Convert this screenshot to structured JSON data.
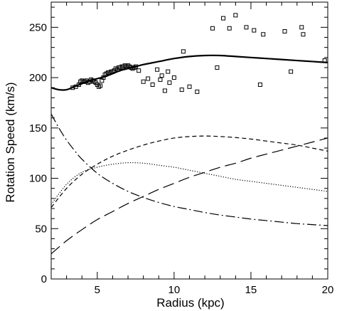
{
  "chart_data": {
    "type": "line",
    "title": "",
    "xlabel": "Radius (kpc)",
    "ylabel": "Rotation Speed (km/s)",
    "xlim": [
      2,
      20
    ],
    "ylim": [
      0,
      275
    ],
    "xticks": [
      5,
      10,
      15,
      20
    ],
    "yticks": [
      0,
      50,
      100,
      150,
      200,
      250
    ],
    "grid": false,
    "legend": "none",
    "series": [
      {
        "style": "solid",
        "width": 2.2,
        "x": [
          2.0,
          2.5,
          3.0,
          3.5,
          4.0,
          4.5,
          5.0,
          5.5,
          6.0,
          6.5,
          7.0,
          7.5,
          8.0,
          9.0,
          10.0,
          11.0,
          12.0,
          13.0,
          14.0,
          15.0,
          16.0,
          17.0,
          18.0,
          19.0,
          20.0
        ],
        "y": [
          190,
          188,
          188,
          191,
          194,
          197,
          199,
          201,
          204,
          207,
          209,
          211,
          213,
          216,
          219,
          221,
          222,
          222,
          221,
          220,
          219,
          218,
          217,
          216,
          215
        ]
      },
      {
        "style": "short-dash",
        "width": 1.2,
        "x": [
          2.0,
          3.0,
          4.0,
          5.0,
          6.0,
          7.0,
          8.0,
          9.0,
          10.0,
          11.0,
          12.0,
          13.0,
          14.0,
          15.0,
          16.0,
          17.0,
          18.0,
          19.0,
          20.0
        ],
        "y": [
          71,
          90,
          104,
          114,
          122,
          128,
          133,
          137,
          140,
          141.5,
          142,
          141.5,
          140.5,
          139,
          137,
          135,
          133,
          130,
          127
        ]
      },
      {
        "style": "dotted",
        "width": 1.2,
        "x": [
          2.0,
          3.0,
          4.0,
          5.0,
          6.0,
          7.0,
          8.0,
          9.0,
          10.0,
          11.0,
          12.0,
          13.0,
          14.0,
          15.0,
          16.0,
          17.0,
          18.0,
          19.0,
          20.0
        ],
        "y": [
          74,
          94,
          106,
          111,
          114,
          115.5,
          115,
          113,
          111,
          108,
          105,
          102,
          99,
          97,
          95,
          93,
          91,
          89,
          87
        ]
      },
      {
        "style": "long-dash",
        "width": 1.2,
        "x": [
          2.0,
          3.0,
          4.0,
          5.0,
          6.0,
          7.0,
          8.0,
          9.0,
          10.0,
          11.0,
          12.0,
          13.0,
          14.0,
          15.0,
          16.0,
          17.0,
          18.0,
          19.0,
          20.0
        ],
        "y": [
          25,
          38,
          49,
          59,
          67,
          75,
          82,
          89,
          95,
          101,
          106,
          111,
          115,
          120,
          124,
          128,
          132,
          136,
          140
        ]
      },
      {
        "style": "dash-dot",
        "width": 1.2,
        "x": [
          2.0,
          2.5,
          3.0,
          3.5,
          4.0,
          5.0,
          6.0,
          7.0,
          8.0,
          9.0,
          10.0,
          11.0,
          12.0,
          13.0,
          14.0,
          15.0,
          16.0,
          17.0,
          18.0,
          19.0,
          20.0
        ],
        "y": [
          164,
          150,
          138,
          128,
          119,
          105,
          95,
          87,
          81,
          76,
          72,
          69,
          66,
          63.5,
          61.5,
          59.5,
          58,
          56.5,
          55,
          54,
          53
        ]
      }
    ],
    "points": {
      "marker": "open-square",
      "x": [
        3.4,
        3.6,
        3.8,
        3.9,
        4.0,
        4.1,
        4.2,
        4.3,
        4.4,
        4.5,
        4.6,
        4.7,
        4.8,
        4.9,
        5.0,
        5.1,
        5.2,
        5.3,
        5.4,
        5.5,
        5.6,
        5.7,
        5.8,
        5.9,
        6.0,
        6.1,
        6.2,
        6.3,
        6.4,
        6.5,
        6.6,
        6.7,
        6.8,
        6.9,
        7.0,
        7.1,
        7.2,
        7.3,
        7.4,
        7.5,
        7.7,
        8.0,
        8.3,
        8.6,
        8.9,
        9.1,
        9.2,
        9.4,
        9.6,
        9.7,
        10.0,
        10.5,
        10.6,
        11.0,
        11.5,
        12.5,
        12.8,
        13.2,
        13.6,
        14.0,
        14.7,
        15.2,
        15.6,
        15.8,
        17.2,
        17.6,
        18.3,
        18.4,
        19.8
      ],
      "y": [
        190,
        191,
        193,
        196,
        197,
        196,
        196,
        197,
        195,
        196,
        198,
        197,
        196,
        195,
        193,
        191,
        192,
        197,
        200,
        203,
        204,
        205,
        205,
        206,
        206,
        207,
        209,
        208,
        210,
        210,
        211,
        211,
        212,
        211,
        212,
        211,
        210,
        209,
        210,
        211,
        207,
        196,
        199,
        193,
        208,
        198,
        202,
        187,
        206,
        195,
        200,
        188,
        226,
        191,
        186,
        249,
        210,
        259,
        249,
        262,
        250,
        247,
        193,
        243,
        246,
        206,
        250,
        243,
        217
      ]
    }
  }
}
